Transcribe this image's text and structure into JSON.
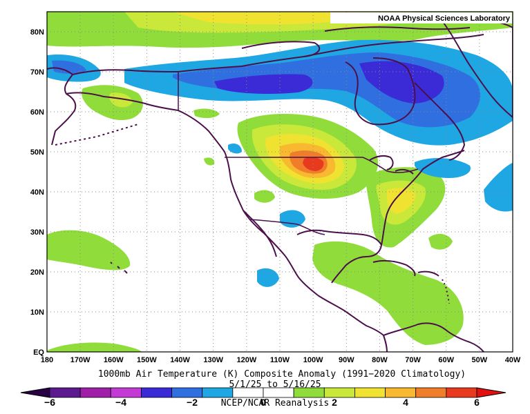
{
  "credit": "NOAA Physical Sciences Laboratory",
  "map": {
    "lon_labels": [
      "180",
      "170W",
      "160W",
      "150W",
      "140W",
      "130W",
      "120W",
      "110W",
      "100W",
      "90W",
      "80W",
      "70W",
      "60W",
      "50W",
      "40W"
    ],
    "lat_labels": [
      "EQ",
      "10N",
      "20N",
      "30N",
      "40N",
      "50N",
      "60N",
      "70N",
      "80N"
    ],
    "lon_range": [
      -180,
      -40
    ],
    "lat_range": [
      0,
      85
    ],
    "grid": true
  },
  "anomaly_regions": [
    {
      "name": "north-polar-positive",
      "value": 1.5
    },
    {
      "name": "arctic-canada-negative",
      "value": -3
    },
    {
      "name": "alaska-siberia-negative",
      "value": -1.5
    },
    {
      "name": "hudson-bay-negative",
      "value": -2.5
    },
    {
      "name": "great-plains-positive",
      "value": 5
    },
    {
      "name": "east-us-positive",
      "value": 3
    },
    {
      "name": "pacific-subtropical-positive",
      "value": 1
    },
    {
      "name": "caribbean-positive",
      "value": 1
    },
    {
      "name": "atlantic-negative",
      "value": -1
    }
  ],
  "colorbar": {
    "ticks": [
      "−6",
      "−4",
      "−2",
      "0",
      "2",
      "4",
      "6"
    ],
    "colors": [
      "#5b1a8f",
      "#a01fa8",
      "#c33bd4",
      "#3a2bd6",
      "#2f6fe0",
      "#1ea7e3",
      "#ffffff",
      "#ffffff",
      "#8fdc3a",
      "#c9e83a",
      "#f0e230",
      "#f8b830",
      "#f07d2a",
      "#e83a1f"
    ],
    "min_color": "#2a0044",
    "max_color": "#e01010"
  },
  "caption": {
    "line1": "1000mb Air Temperature (K) Composite Anomaly (1991−2020 Climatology)",
    "line2": "5/1/25  to 5/16/25",
    "line3": "NCEP/NCAR Reanalysis"
  },
  "colors": {
    "coast": "#4b0f4b",
    "grid": "#8a8a8a",
    "green": "#8fdc3a",
    "yellowgreen": "#c9e83a",
    "yellow": "#f0e230",
    "orange": "#f8b830",
    "darkorange": "#f07d2a",
    "red": "#e83a1f",
    "lightblue": "#1ea7e3",
    "blue": "#2f6fe0",
    "darkblue": "#3a2bd6"
  }
}
